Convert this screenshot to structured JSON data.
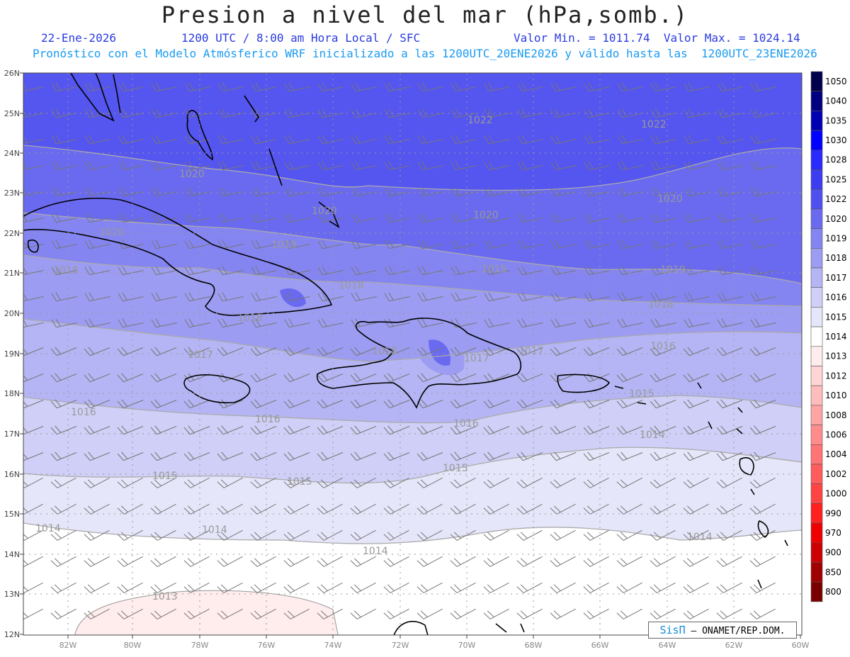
{
  "header": {
    "title": "Presion a nivel del mar (hPa,somb.)",
    "date": "22-Ene-2026",
    "time": "1200 UTC / 8:00 am Hora Local / SFC",
    "minmax": "Valor Min. = 1011.74  Valor Max. = 1024.14",
    "model": "Pronóstico con el Modelo Atmósferico WRF inicializado a las 1200UTC_20ENE2026 y válido hasta las  1200UTC_23ENE2026"
  },
  "axes": {
    "lat_labels": [
      "26N",
      "25N",
      "24N",
      "23N",
      "22N",
      "21N",
      "20N",
      "19N",
      "18N",
      "17N",
      "16N",
      "15N",
      "14N",
      "13N",
      "12N"
    ],
    "lon_labels": [
      "82W",
      "80W",
      "78W",
      "76W",
      "74W",
      "72W",
      "70W",
      "68W",
      "66W",
      "64W",
      "62W",
      "60W"
    ]
  },
  "colorbar": {
    "levels": [
      "1050",
      "1040",
      "1035",
      "1030",
      "1028",
      "1025",
      "1022",
      "1020",
      "1019",
      "1018",
      "1017",
      "1016",
      "1015",
      "1014",
      "1013",
      "1012",
      "1010",
      "1008",
      "1006",
      "1004",
      "1002",
      "1000",
      "990",
      "970",
      "900",
      "850",
      "800"
    ],
    "colors": [
      "#00004d",
      "#000080",
      "#0000b3",
      "#0000ff",
      "#2a2aff",
      "#3c3cf0",
      "#5050f0",
      "#6a6af0",
      "#8484f2",
      "#9c9cf2",
      "#b5b5f5",
      "#cfcff7",
      "#e6e6fb",
      "#ffffff",
      "#ffecec",
      "#ffd4d4",
      "#ffbcbc",
      "#ffa4a4",
      "#ff8c8c",
      "#ff7474",
      "#ff5c5c",
      "#ff4444",
      "#ff2020",
      "#ee0000",
      "#cc0000",
      "#a00000",
      "#7a0000"
    ]
  },
  "isobar_labels": [
    {
      "text": "1022"
    },
    {
      "text": "1022"
    },
    {
      "text": "1020"
    },
    {
      "text": "1020"
    },
    {
      "text": "1020"
    },
    {
      "text": "1020"
    },
    {
      "text": "1020"
    },
    {
      "text": "1019"
    },
    {
      "text": "1019"
    },
    {
      "text": "1019"
    },
    {
      "text": "1018"
    },
    {
      "text": "1018"
    },
    {
      "text": "1018"
    },
    {
      "text": "1018"
    },
    {
      "text": "1018"
    },
    {
      "text": "1017"
    },
    {
      "text": "1017"
    },
    {
      "text": "1017"
    },
    {
      "text": "1016"
    },
    {
      "text": "1016"
    },
    {
      "text": "1016"
    },
    {
      "text": "1016"
    },
    {
      "text": "1015"
    },
    {
      "text": "1015"
    },
    {
      "text": "1015"
    },
    {
      "text": "1015"
    },
    {
      "text": "1014"
    },
    {
      "text": "1014"
    },
    {
      "text": "1014"
    },
    {
      "text": "1014"
    },
    {
      "text": "1014"
    },
    {
      "text": "1013"
    }
  ],
  "credit": {
    "brand": "SisΠ",
    "org": "– ONAMET/REP.DOM."
  }
}
